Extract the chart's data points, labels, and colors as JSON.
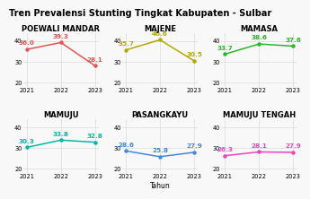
{
  "title": "Tren Prevalensi Stunting Tingkat Kabupaten - Sulbar",
  "subplots": [
    {
      "name": "POEWALI MANDAR",
      "years": [
        2021,
        2022,
        2023
      ],
      "values": [
        36.0,
        39.3,
        28.1
      ],
      "color": "#e05555"
    },
    {
      "name": "MAJENE",
      "years": [
        2021,
        2022,
        2023
      ],
      "values": [
        35.7,
        40.6,
        30.5
      ],
      "color": "#b5a800"
    },
    {
      "name": "MAMASA",
      "years": [
        2021,
        2022,
        2023
      ],
      "values": [
        33.7,
        38.6,
        37.6
      ],
      "color": "#2db52d"
    },
    {
      "name": "MAMUJU",
      "years": [
        2021,
        2022,
        2023
      ],
      "values": [
        30.3,
        33.8,
        32.8
      ],
      "color": "#00b9a8"
    },
    {
      "name": "PASANGKAYU",
      "years": [
        2021,
        2022,
        2023
      ],
      "values": [
        28.6,
        25.8,
        27.9
      ],
      "color": "#4488dd"
    },
    {
      "name": "MAMUJU TENGAH",
      "years": [
        2021,
        2022,
        2023
      ],
      "values": [
        26.3,
        28.1,
        27.9
      ],
      "color": "#ee44bb"
    }
  ],
  "xlabel": "Tahun",
  "ylim": [
    18,
    44
  ],
  "yticks": [
    20,
    30,
    40
  ],
  "title_fontsize": 7.0,
  "subplot_title_fontsize": 6.0,
  "label_fontsize": 5.2,
  "tick_fontsize": 4.8,
  "xlabel_fontsize": 5.5,
  "bg_color": "#f8f8f8",
  "grid_color": "#e0e0e0",
  "annotation_offsets": [
    [
      [
        0,
        1.8
      ],
      [
        0,
        1.8
      ],
      [
        0,
        1.8
      ]
    ],
    [
      [
        0,
        1.8
      ],
      [
        0,
        1.8
      ],
      [
        0,
        1.8
      ]
    ],
    [
      [
        0,
        1.8
      ],
      [
        0,
        1.8
      ],
      [
        0,
        1.8
      ]
    ],
    [
      [
        0,
        1.8
      ],
      [
        0,
        1.8
      ],
      [
        0,
        1.8
      ]
    ],
    [
      [
        0,
        1.8
      ],
      [
        0,
        1.8
      ],
      [
        0,
        1.8
      ]
    ],
    [
      [
        0,
        1.8
      ],
      [
        0,
        1.8
      ],
      [
        0,
        1.8
      ]
    ]
  ]
}
